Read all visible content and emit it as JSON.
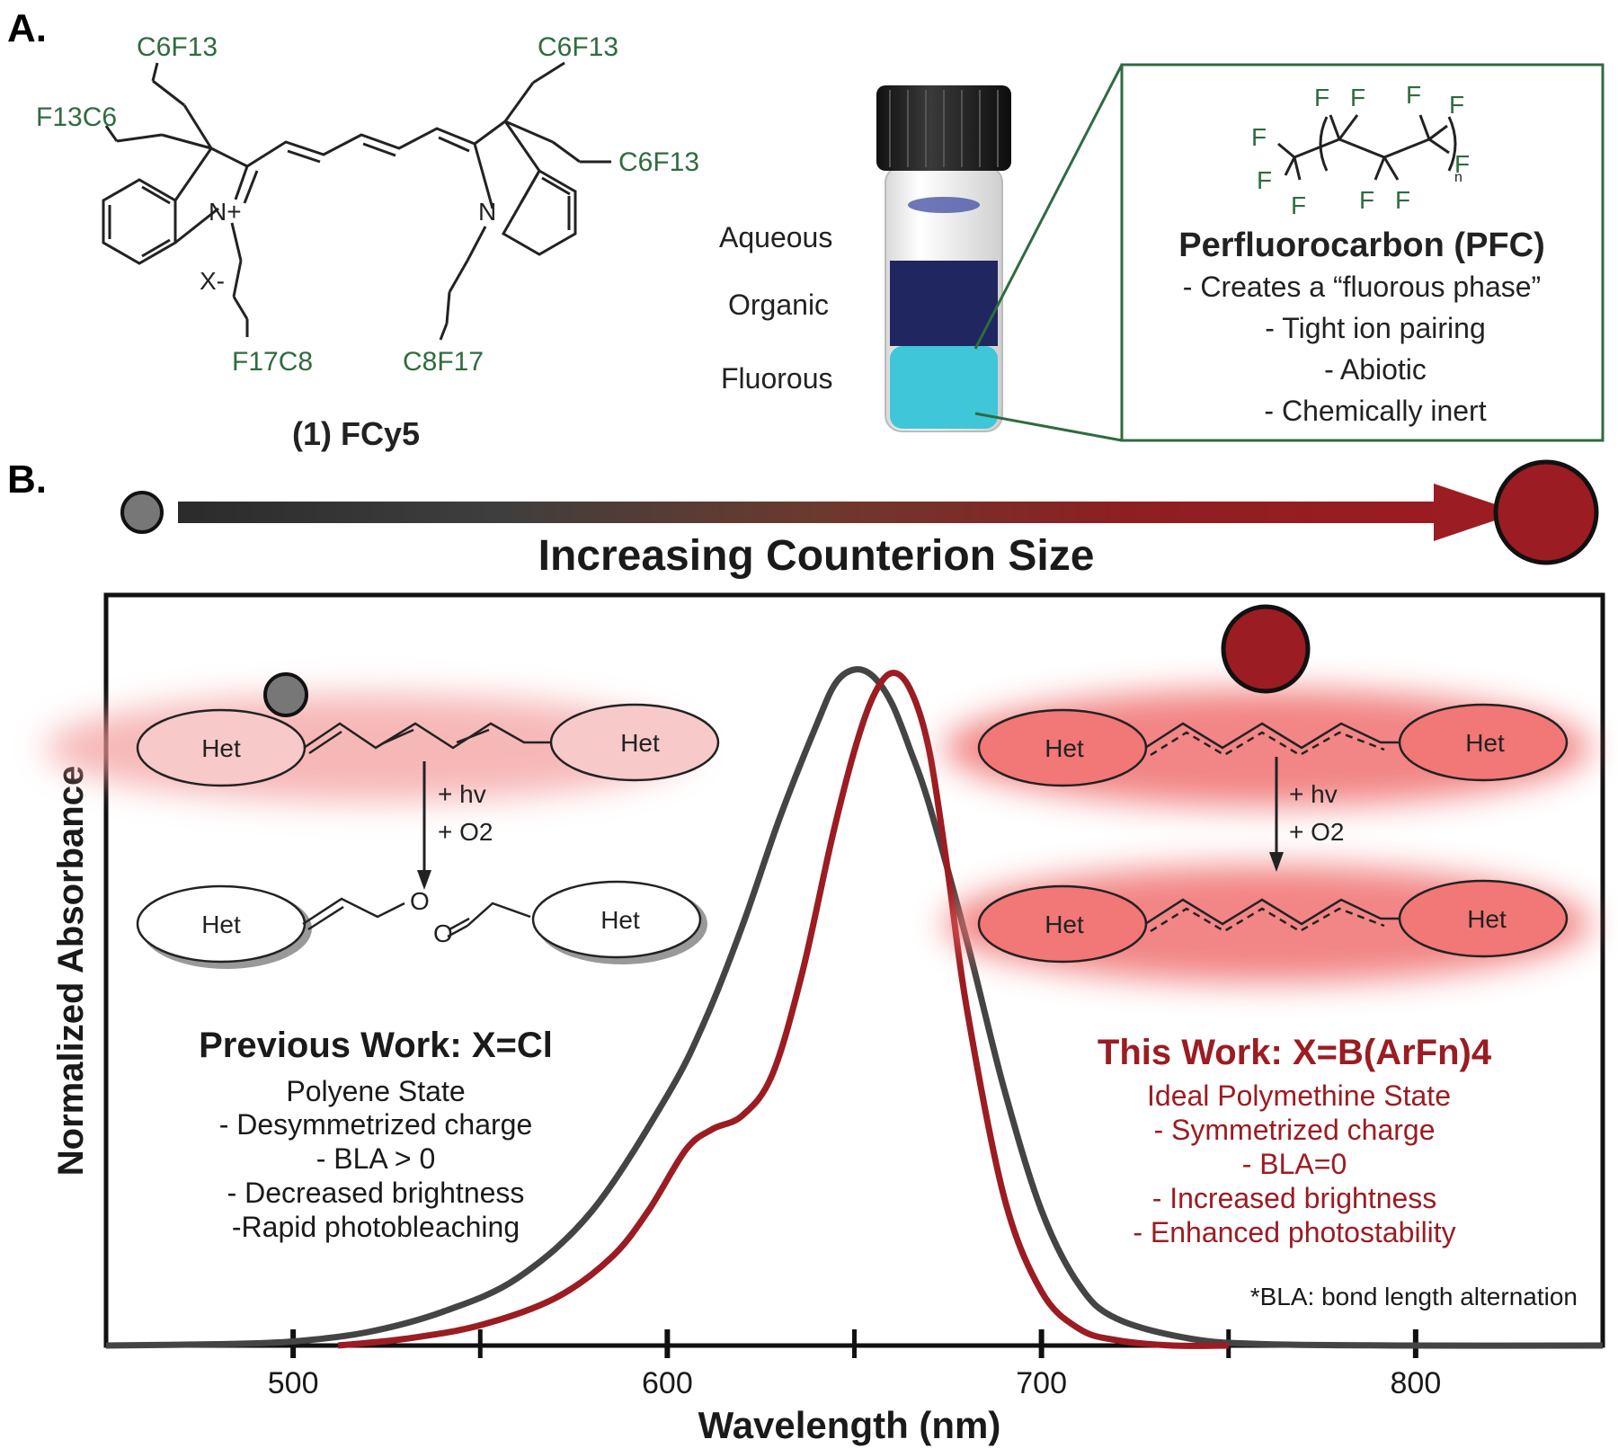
{
  "colors": {
    "green": "#2f6b3f",
    "dark_red": "#9b1c22",
    "dark_gray": "#444444",
    "glow": "#f06f6f",
    "cyan": "#3fc6d8",
    "navy": "#1f2660"
  },
  "panel_a": {
    "label": "A.",
    "molecule": {
      "caption": "(1) FCy5",
      "substituents": [
        "C6F13",
        "C6F13",
        "F13C6",
        "C6F13",
        "F17C8",
        "C8F17"
      ],
      "n_plus": "N+",
      "n": "N",
      "counterion": "X-"
    },
    "vial": {
      "phases": [
        "Aqueous",
        "Organic",
        "Fluorous"
      ]
    },
    "pfc_box": {
      "title": "Perfluorocarbon (PFC)",
      "bullets": [
        "- Creates a “fluorous phase”",
        "- Tight ion pairing",
        "- Abiotic",
        "- Chemically inert"
      ],
      "f_atoms": "F",
      "n_subscript": "n"
    }
  },
  "panel_b": {
    "label": "B.",
    "arrow_title": "Increasing Counterion Size",
    "left_scheme": {
      "het": "Het",
      "hv": "+ hv",
      "o2": "+ O2",
      "o": "O"
    },
    "right_scheme": {
      "het": "Het",
      "hv": "+ hv",
      "o2": "+ O2"
    },
    "previous": {
      "title": "Previous Work: X=Cl",
      "lines": [
        "Polyene State",
        "- Desymmetrized charge",
        "- BLA > 0",
        "- Decreased brightness",
        "-Rapid photobleaching"
      ]
    },
    "this_work": {
      "title": "This Work: X=B(ArFn)4",
      "lines": [
        "Ideal Polymethine State",
        "- Symmetrized charge",
        "- BLA=0",
        "- Increased brightness",
        "- Enhanced photostability"
      ]
    },
    "footnote": "*BLA: bond length alternation"
  },
  "chart_data": {
    "type": "line",
    "xlabel": "Wavelength (nm)",
    "ylabel": "Normalized Absorbance",
    "xlim": [
      450,
      850
    ],
    "ylim": [
      0,
      1.0
    ],
    "x_ticks": [
      500,
      600,
      700,
      800
    ],
    "series": [
      {
        "color": "#444444",
        "x": [
          450,
          480,
          500,
          520,
          540,
          560,
          580,
          600,
          610,
          620,
          630,
          640,
          645,
          650,
          655,
          660,
          665,
          670,
          680,
          690,
          700,
          710,
          720,
          740,
          760,
          800,
          850
        ],
        "y": [
          0.0,
          0.002,
          0.006,
          0.02,
          0.05,
          0.1,
          0.2,
          0.37,
          0.48,
          0.62,
          0.78,
          0.92,
          0.98,
          1.0,
          0.99,
          0.95,
          0.88,
          0.8,
          0.6,
          0.38,
          0.2,
          0.09,
          0.04,
          0.01,
          0.002,
          0.0,
          0.0
        ]
      },
      {
        "color": "#9b1c22",
        "x": [
          512,
          530,
          550,
          570,
          585,
          595,
          605,
          612,
          620,
          628,
          636,
          644,
          650,
          655,
          660,
          665,
          670,
          675,
          680,
          690,
          700,
          710,
          720,
          735,
          750
        ],
        "y": [
          0.0,
          0.01,
          0.03,
          0.07,
          0.13,
          0.2,
          0.29,
          0.32,
          0.34,
          0.4,
          0.55,
          0.75,
          0.88,
          0.96,
          0.995,
          0.97,
          0.88,
          0.7,
          0.5,
          0.22,
          0.08,
          0.025,
          0.008,
          0.0,
          0.0
        ]
      }
    ]
  }
}
